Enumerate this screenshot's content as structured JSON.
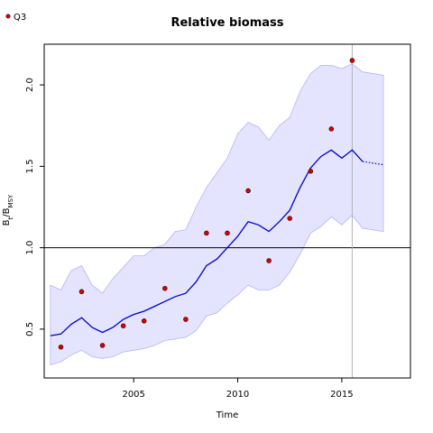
{
  "chart_data": {
    "type": "line",
    "title": "Relative biomass",
    "xlabel": "Time",
    "ylabel": {
      "main": "B",
      "sub1": "t",
      "sep": "/B",
      "sub2": "MSY"
    },
    "xlim": [
      2000.7,
      2018.3
    ],
    "ylim": [
      0.2,
      2.25
    ],
    "x_ticks": [
      2005,
      2010,
      2015
    ],
    "y_ticks": [
      0.5,
      1.0,
      1.5,
      2.0
    ],
    "reference_line_y": 1.0,
    "reference_line_x": 2015.5,
    "legend": {
      "position": "top-left",
      "entries": [
        {
          "label": "Q3",
          "color": "#dd0000"
        }
      ]
    },
    "colors": {
      "line": "#0000cc",
      "band": "#e4e4ff",
      "band_edge": "#b3b3ff",
      "points": "#dd0000",
      "vline": "#b4b4b4"
    },
    "series": [
      {
        "name": "Q3",
        "kind": "points",
        "x": [
          2001.5,
          2002.5,
          2003.5,
          2004.5,
          2005.5,
          2006.5,
          2007.5,
          2008.5,
          2009.5,
          2010.5,
          2011.5,
          2012.5,
          2013.5,
          2014.5,
          2015.5
        ],
        "y": [
          0.39,
          0.73,
          0.4,
          0.52,
          0.55,
          0.75,
          0.56,
          1.09,
          1.09,
          1.35,
          0.92,
          1.18,
          1.47,
          1.73,
          2.15
        ]
      },
      {
        "kind": "estimate",
        "x": [
          2001.0,
          2001.5,
          2002.0,
          2002.5,
          2003.0,
          2003.5,
          2004.0,
          2004.5,
          2005.0,
          2005.5,
          2006.0,
          2006.5,
          2007.0,
          2007.5,
          2008.0,
          2008.5,
          2009.0,
          2009.5,
          2010.0,
          2010.5,
          2011.0,
          2011.5,
          2012.0,
          2012.5,
          2013.0,
          2013.5,
          2014.0,
          2014.5,
          2015.0,
          2015.5,
          2016.0
        ],
        "y": [
          0.46,
          0.47,
          0.53,
          0.57,
          0.51,
          0.48,
          0.51,
          0.56,
          0.59,
          0.61,
          0.64,
          0.67,
          0.7,
          0.72,
          0.79,
          0.89,
          0.93,
          1.0,
          1.07,
          1.16,
          1.14,
          1.1,
          1.16,
          1.23,
          1.37,
          1.49,
          1.56,
          1.6,
          1.55,
          1.6,
          1.53
        ]
      },
      {
        "kind": "projection",
        "x": [
          2016.0,
          2017.0
        ],
        "y": [
          1.53,
          1.51
        ]
      },
      {
        "kind": "ci_upper",
        "x": [
          2001.0,
          2001.5,
          2002.0,
          2002.5,
          2003.0,
          2003.5,
          2004.0,
          2004.5,
          2005.0,
          2005.5,
          2006.0,
          2006.5,
          2007.0,
          2007.5,
          2008.0,
          2008.5,
          2009.0,
          2009.5,
          2010.0,
          2010.5,
          2011.0,
          2011.5,
          2012.0,
          2012.5,
          2013.0,
          2013.5,
          2014.0,
          2014.5,
          2015.0,
          2015.5,
          2016.0,
          2017.0
        ],
        "y": [
          0.77,
          0.74,
          0.86,
          0.89,
          0.77,
          0.72,
          0.81,
          0.88,
          0.95,
          0.95,
          1.0,
          1.02,
          1.1,
          1.11,
          1.25,
          1.37,
          1.46,
          1.55,
          1.7,
          1.77,
          1.74,
          1.66,
          1.75,
          1.8,
          1.96,
          2.07,
          2.12,
          2.12,
          2.1,
          2.13,
          2.08,
          2.06
        ]
      },
      {
        "kind": "ci_lower",
        "x": [
          2001.0,
          2001.5,
          2002.0,
          2002.5,
          2003.0,
          2003.5,
          2004.0,
          2004.5,
          2005.0,
          2005.5,
          2006.0,
          2006.5,
          2007.0,
          2007.5,
          2008.0,
          2008.5,
          2009.0,
          2009.5,
          2010.0,
          2010.5,
          2011.0,
          2011.5,
          2012.0,
          2012.5,
          2013.0,
          2013.5,
          2014.0,
          2014.5,
          2015.0,
          2015.5,
          2016.0,
          2017.0
        ],
        "y": [
          0.28,
          0.3,
          0.34,
          0.37,
          0.33,
          0.32,
          0.33,
          0.36,
          0.37,
          0.38,
          0.4,
          0.43,
          0.44,
          0.45,
          0.49,
          0.58,
          0.6,
          0.66,
          0.71,
          0.77,
          0.74,
          0.74,
          0.77,
          0.85,
          0.96,
          1.09,
          1.13,
          1.19,
          1.14,
          1.2,
          1.12,
          1.1
        ]
      }
    ]
  }
}
